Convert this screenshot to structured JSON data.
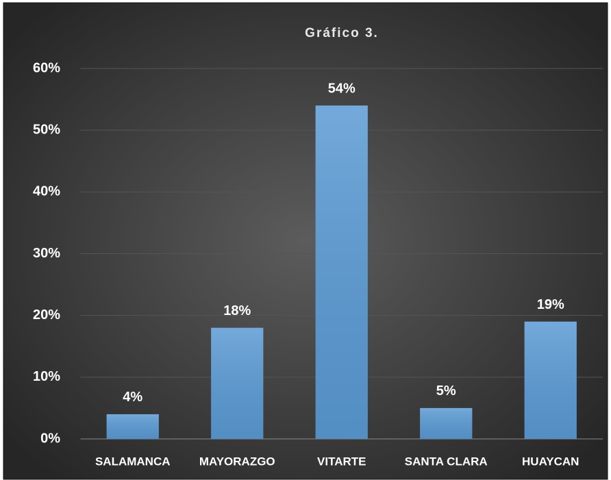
{
  "chart_data": {
    "type": "bar",
    "title": "Gráfico 3.",
    "categories": [
      "SALAMANCA",
      "MAYORAZGO",
      "VITARTE",
      "SANTA CLARA",
      "HUAYCAN"
    ],
    "values": [
      4,
      18,
      54,
      5,
      19
    ],
    "value_labels": [
      "4%",
      "18%",
      "54%",
      "5%",
      "19%"
    ],
    "color": "#5b9bd5",
    "ylim": [
      0,
      60
    ],
    "yticks": [
      {
        "value": 0,
        "label": "0%"
      },
      {
        "value": 10,
        "label": "10%"
      },
      {
        "value": 20,
        "label": "20%"
      },
      {
        "value": 30,
        "label": "30%"
      },
      {
        "value": 40,
        "label": "40%"
      },
      {
        "value": 50,
        "label": "50%"
      },
      {
        "value": 60,
        "label": "60%"
      }
    ],
    "grid": true
  }
}
